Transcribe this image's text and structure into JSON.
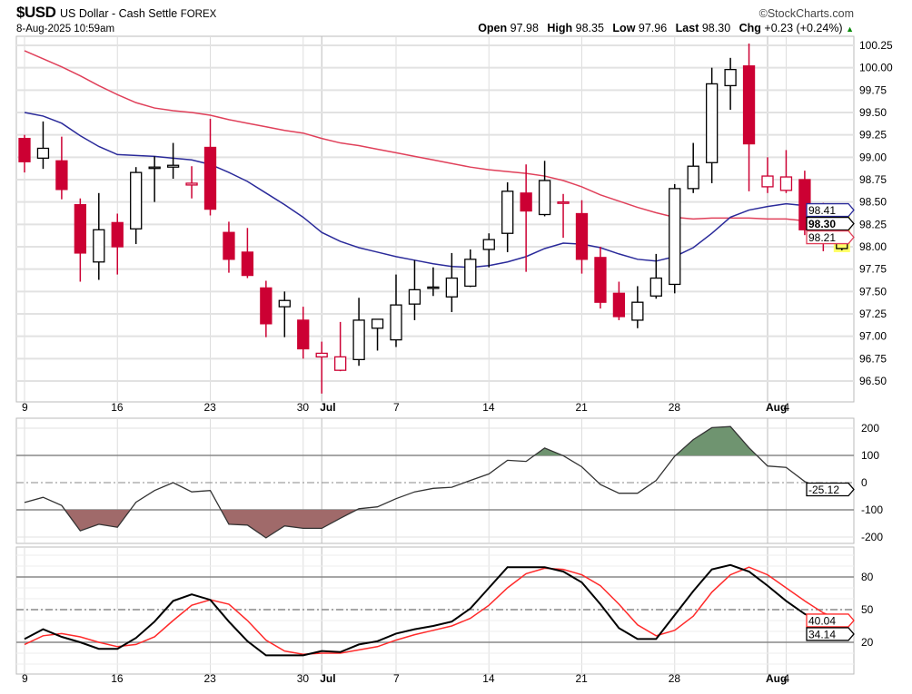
{
  "header": {
    "symbol": "$USD",
    "name": "US Dollar - Cash Settle",
    "exchange": "FOREX",
    "brand": "©StockCharts.com",
    "datetime": "8-Aug-2025 10:59am",
    "open_label": "Open",
    "open": "97.98",
    "high_label": "High",
    "high": "98.35",
    "low_label": "Low",
    "low": "97.96",
    "last_label": "Last",
    "last": "98.30",
    "chg_label": "Chg",
    "chg": "+0.23 (+0.24%)",
    "up_arrow": "▲"
  },
  "chart_data": [
    {
      "type": "candlestick",
      "title": "$USD US Dollar - Cash Settle FOREX",
      "ylim": [
        96.35,
        100.35
      ],
      "yticks": [
        "96.50",
        "96.75",
        "97.00",
        "97.25",
        "97.50",
        "97.75",
        "98.00",
        "98.25",
        "98.50",
        "98.75",
        "99.00",
        "99.25",
        "99.50",
        "99.75",
        "100.00",
        "100.25"
      ],
      "xticks": [
        {
          "i": 0,
          "label": "9"
        },
        {
          "i": 5,
          "label": "16"
        },
        {
          "i": 10,
          "label": "23"
        },
        {
          "i": 15,
          "label": "30"
        },
        {
          "i": 16,
          "label": "Jul",
          "bold": true
        },
        {
          "i": 20,
          "label": "7"
        },
        {
          "i": 25,
          "label": "14"
        },
        {
          "i": 30,
          "label": "21"
        },
        {
          "i": 35,
          "label": "28"
        },
        {
          "i": 40,
          "label": "Aug",
          "bold": true
        },
        {
          "i": 41,
          "label": "4"
        }
      ],
      "candles": [
        [
          99.21,
          99.25,
          98.83,
          98.95
        ],
        [
          98.99,
          99.4,
          98.87,
          99.1
        ],
        [
          98.96,
          99.23,
          98.53,
          98.64
        ],
        [
          98.47,
          98.54,
          97.61,
          97.93
        ],
        [
          97.83,
          98.6,
          97.63,
          98.19
        ],
        [
          98.27,
          98.37,
          97.69,
          98.0
        ],
        [
          98.2,
          98.89,
          98.03,
          98.83
        ],
        [
          98.88,
          99.01,
          98.5,
          98.89
        ],
        [
          98.89,
          99.16,
          98.76,
          98.91
        ],
        [
          98.69,
          98.9,
          98.54,
          98.71
        ],
        [
          99.11,
          99.43,
          98.35,
          98.42
        ],
        [
          98.16,
          98.28,
          97.71,
          97.86
        ],
        [
          97.94,
          98.21,
          97.65,
          97.68
        ],
        [
          97.54,
          97.62,
          96.99,
          97.14
        ],
        [
          97.33,
          97.5,
          96.99,
          97.4
        ],
        [
          97.18,
          97.33,
          96.75,
          96.86
        ],
        [
          96.77,
          96.94,
          96.36,
          96.81
        ],
        [
          96.62,
          97.16,
          96.61,
          96.77
        ],
        [
          96.74,
          97.43,
          96.67,
          97.18
        ],
        [
          97.09,
          97.19,
          96.84,
          97.19
        ],
        [
          96.96,
          97.69,
          96.88,
          97.35
        ],
        [
          97.36,
          97.85,
          97.18,
          97.52
        ],
        [
          97.54,
          97.77,
          97.45,
          97.55
        ],
        [
          97.44,
          97.93,
          97.27,
          97.65
        ],
        [
          97.56,
          97.97,
          97.55,
          97.86
        ],
        [
          97.97,
          98.15,
          97.77,
          98.08
        ],
        [
          98.15,
          98.72,
          97.94,
          98.62
        ],
        [
          98.6,
          98.92,
          97.72,
          98.4
        ],
        [
          98.36,
          98.96,
          98.34,
          98.74
        ],
        [
          98.49,
          98.59,
          98.1,
          98.5
        ],
        [
          98.37,
          98.52,
          97.7,
          97.86
        ],
        [
          97.88,
          98.0,
          97.31,
          97.38
        ],
        [
          97.48,
          97.61,
          97.18,
          97.22
        ],
        [
          97.18,
          97.56,
          97.09,
          97.38
        ],
        [
          97.45,
          97.92,
          97.42,
          97.65
        ],
        [
          97.58,
          98.7,
          97.48,
          98.65
        ],
        [
          98.65,
          99.16,
          98.6,
          98.9
        ],
        [
          98.94,
          100.0,
          98.71,
          99.82
        ],
        [
          99.8,
          100.11,
          99.53,
          99.98
        ],
        [
          100.02,
          100.27,
          98.62,
          99.15
        ],
        [
          98.67,
          99.0,
          98.6,
          98.79
        ],
        [
          98.63,
          99.08,
          98.6,
          98.78
        ],
        [
          98.75,
          98.85,
          98.13,
          98.19
        ],
        [
          98.2,
          98.49,
          97.95,
          98.08
        ],
        [
          97.98,
          98.35,
          97.96,
          98.3
        ]
      ],
      "ma_fast": {
        "color": "#2a2a9a",
        "last": "98.41",
        "values": [
          99.5,
          99.46,
          99.38,
          99.24,
          99.12,
          99.03,
          99.02,
          99.01,
          98.99,
          98.97,
          98.92,
          98.83,
          98.73,
          98.6,
          98.47,
          98.33,
          98.16,
          98.06,
          97.99,
          97.94,
          97.89,
          97.85,
          97.81,
          97.78,
          97.77,
          97.79,
          97.83,
          97.89,
          97.98,
          98.04,
          98.03,
          97.99,
          97.92,
          97.86,
          97.84,
          97.89,
          97.99,
          98.15,
          98.33,
          98.41,
          98.45,
          98.48,
          98.46,
          98.43,
          98.41
        ]
      },
      "ma_slow": {
        "color": "#e0405a",
        "last": "98.21",
        "values": [
          100.19,
          100.1,
          100.01,
          99.91,
          99.8,
          99.7,
          99.61,
          99.55,
          99.52,
          99.5,
          99.47,
          99.42,
          99.38,
          99.34,
          99.3,
          99.27,
          99.21,
          99.16,
          99.13,
          99.09,
          99.05,
          99.01,
          98.97,
          98.93,
          98.89,
          98.86,
          98.84,
          98.82,
          98.79,
          98.74,
          98.67,
          98.58,
          98.51,
          98.44,
          98.38,
          98.33,
          98.31,
          98.32,
          98.32,
          98.32,
          98.31,
          98.31,
          98.29,
          98.25,
          98.23
        ]
      },
      "last_price": "98.30",
      "colors": {
        "down": "#cc0033",
        "up": "#000000",
        "highlight": "#ffff66"
      }
    },
    {
      "type": "line",
      "name": "CCI",
      "ylim": [
        -230,
        230
      ],
      "yticks": [
        "200",
        "100",
        "0",
        "-100",
        "-200"
      ],
      "last": "-25.12",
      "values": [
        -73,
        -54,
        -84,
        -177,
        -153,
        -164,
        -72,
        -29,
        0,
        -34,
        -29,
        -153,
        -156,
        -203,
        -159,
        -168,
        -168,
        -131,
        -96,
        -89,
        -59,
        -34,
        -21,
        -17,
        8,
        32,
        82,
        78,
        127,
        99,
        58,
        -7,
        -39,
        -39,
        8,
        97,
        158,
        202,
        206,
        128,
        61,
        56,
        4,
        -23,
        -25
      ],
      "colors": {
        "line": "#333333",
        "above": "#6f9470",
        "below": "#a06a6a"
      }
    },
    {
      "type": "line",
      "name": "Stochastic",
      "ylim": [
        -7,
        108
      ],
      "yticks": [
        "80",
        "50",
        "20"
      ],
      "series": [
        {
          "name": "%K",
          "color": "#000000",
          "last": "34.14",
          "values": [
            23,
            32,
            25,
            20,
            14,
            14,
            24,
            39,
            58,
            64,
            59,
            39,
            21,
            8,
            8,
            8,
            12,
            11,
            18,
            21,
            28,
            32,
            35,
            39,
            51,
            70,
            89,
            89,
            89,
            85,
            75,
            55,
            33,
            23,
            23,
            45,
            67,
            87,
            91,
            85,
            72,
            58,
            46,
            39,
            34
          ]
        },
        {
          "name": "%D",
          "color": "#ff2a2a",
          "last": "40.04",
          "values": [
            18,
            26,
            28,
            25,
            20,
            16,
            18,
            25,
            40,
            54,
            59,
            55,
            40,
            22,
            12,
            9,
            10,
            10,
            13,
            16,
            22,
            27,
            31,
            35,
            42,
            54,
            70,
            83,
            88,
            87,
            82,
            72,
            55,
            36,
            26,
            31,
            44,
            66,
            82,
            89,
            82,
            70,
            58,
            47,
            40
          ]
        }
      ]
    }
  ]
}
